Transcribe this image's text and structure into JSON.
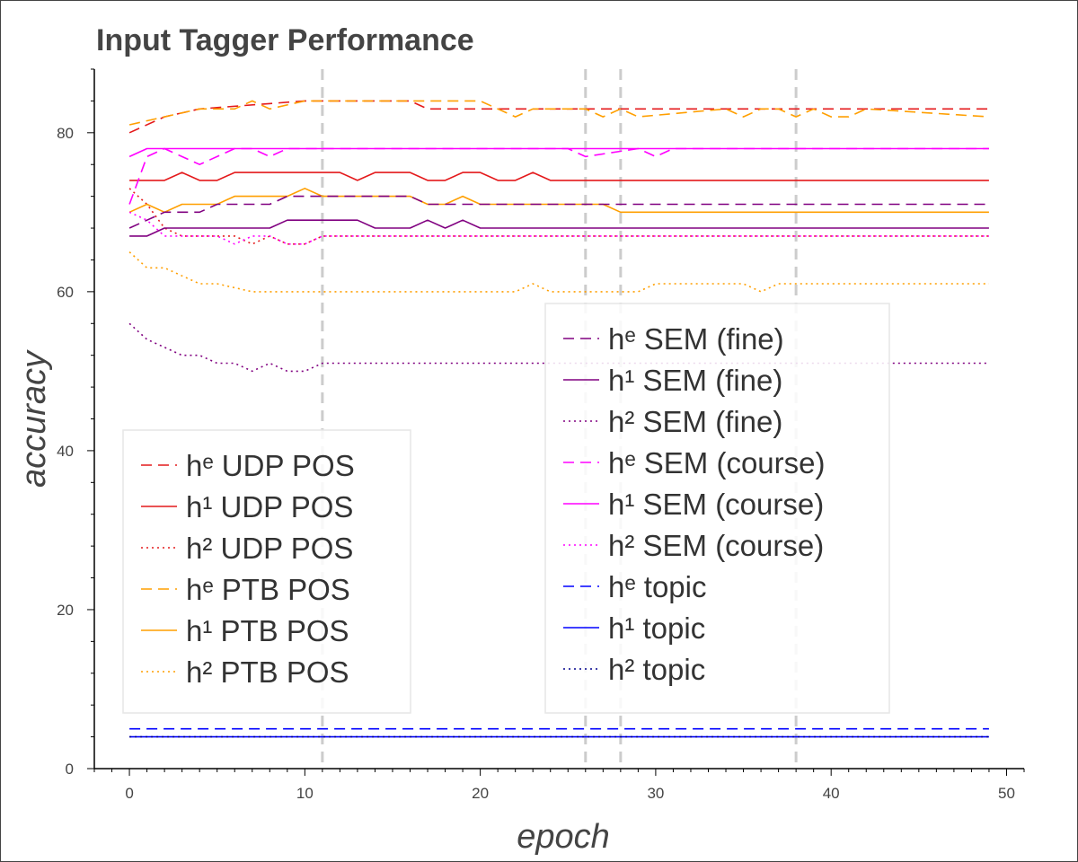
{
  "chart_data": {
    "type": "line",
    "title": "Input Tagger Performance",
    "xlabel": "epoch",
    "ylabel": "accuracy",
    "xlim": [
      -2,
      51
    ],
    "ylim": [
      0,
      88
    ],
    "xticks": [
      0,
      10,
      20,
      30,
      40,
      50
    ],
    "yticks": [
      0,
      20,
      40,
      60,
      80
    ],
    "vlines": [
      11,
      26,
      28,
      38
    ],
    "legends": [
      {
        "position": "lower-left",
        "entries": [
          0,
          1,
          2,
          3,
          4,
          5
        ]
      },
      {
        "position": "center-right",
        "entries": [
          6,
          7,
          8,
          9,
          10,
          11,
          12,
          13,
          14
        ]
      }
    ],
    "series": [
      {
        "name": "hᵉ UDP POS",
        "color": "#e41a1c",
        "dash": "dashed",
        "x": [
          0,
          2,
          4,
          10,
          16,
          17,
          49
        ],
        "y": [
          80,
          82,
          83,
          84,
          84,
          83,
          83
        ]
      },
      {
        "name": "h¹ UDP POS",
        "color": "#e41a1c",
        "dash": "solid",
        "x": [
          0,
          2,
          3,
          4,
          5,
          6,
          12,
          13,
          14,
          16,
          17,
          18,
          19,
          20,
          21,
          22,
          23,
          24,
          49
        ],
        "y": [
          74,
          74,
          75,
          74,
          74,
          75,
          75,
          74,
          75,
          75,
          74,
          74,
          75,
          75,
          74,
          74,
          75,
          74,
          74
        ]
      },
      {
        "name": "h² UDP POS",
        "color": "#e41a1c",
        "dash": "dotted",
        "x": [
          0,
          1,
          2,
          3,
          5,
          6,
          7,
          8,
          9,
          10,
          11,
          49
        ],
        "y": [
          73,
          71,
          68,
          67,
          67,
          67,
          66,
          67,
          66,
          66,
          67,
          67
        ]
      },
      {
        "name": "hᵉ PTB POS",
        "color": "#ff9f00",
        "dash": "dashed",
        "x": [
          0,
          2,
          4,
          6,
          7,
          8,
          10,
          20,
          21,
          22,
          23,
          26,
          27,
          28,
          29,
          34,
          35,
          36,
          37,
          38,
          39,
          40,
          41,
          42,
          49
        ],
        "y": [
          81,
          82,
          83,
          83,
          84,
          83,
          84,
          84,
          83,
          82,
          83,
          83,
          82,
          83,
          82,
          83,
          82,
          83,
          83,
          82,
          83,
          82,
          82,
          83,
          82
        ]
      },
      {
        "name": "h¹ PTB POS",
        "color": "#ff9f00",
        "dash": "solid",
        "x": [
          0,
          1,
          2,
          3,
          5,
          6,
          8,
          9,
          10,
          11,
          12,
          16,
          17,
          18,
          19,
          20,
          27,
          28,
          49
        ],
        "y": [
          70,
          71,
          70,
          71,
          71,
          72,
          72,
          72,
          73,
          72,
          72,
          72,
          71,
          71,
          72,
          71,
          71,
          70,
          70
        ]
      },
      {
        "name": "h² PTB POS",
        "color": "#ff9f00",
        "dash": "dotted",
        "x": [
          0,
          1,
          2,
          3,
          4,
          5,
          7,
          11,
          22,
          23,
          24,
          29,
          30,
          35,
          36,
          37,
          49
        ],
        "y": [
          65,
          63,
          63,
          62,
          61,
          61,
          60,
          60,
          60,
          61,
          60,
          60,
          61,
          61,
          60,
          61,
          61
        ]
      },
      {
        "name": "hᵉ SEM (fine)",
        "color": "#800080",
        "dash": "dashed",
        "x": [
          0,
          1,
          2,
          4,
          5,
          8,
          9,
          12,
          16,
          17,
          49
        ],
        "y": [
          68,
          69,
          70,
          70,
          71,
          71,
          72,
          72,
          72,
          71,
          71
        ]
      },
      {
        "name": "h¹ SEM (fine)",
        "color": "#800080",
        "dash": "solid",
        "x": [
          0,
          1,
          2,
          4,
          8,
          9,
          13,
          14,
          16,
          17,
          18,
          19,
          20,
          49
        ],
        "y": [
          67,
          67,
          68,
          68,
          68,
          69,
          69,
          68,
          68,
          69,
          68,
          69,
          68,
          68
        ]
      },
      {
        "name": "h² SEM (fine)",
        "color": "#800080",
        "dash": "dotted",
        "x": [
          0,
          1,
          2,
          3,
          4,
          5,
          6,
          7,
          8,
          9,
          10,
          11,
          49
        ],
        "y": [
          56,
          54,
          53,
          52,
          52,
          51,
          51,
          50,
          51,
          50,
          50,
          51,
          51
        ]
      },
      {
        "name": "hᵉ SEM (course)",
        "color": "#ff00ff",
        "dash": "dashed",
        "x": [
          0,
          1,
          2,
          3,
          4,
          6,
          7,
          8,
          9,
          10,
          25,
          26,
          29,
          30,
          31,
          49
        ],
        "y": [
          71,
          77,
          78,
          77,
          76,
          78,
          78,
          77,
          78,
          78,
          78,
          77,
          78,
          77,
          78,
          78
        ]
      },
      {
        "name": "h¹ SEM (course)",
        "color": "#ff00ff",
        "dash": "solid",
        "x": [
          0,
          1,
          49
        ],
        "y": [
          77,
          78,
          78
        ]
      },
      {
        "name": "h² SEM (course)",
        "color": "#ff00ff",
        "dash": "dotted",
        "x": [
          0,
          1,
          2,
          3,
          4,
          5,
          6,
          7,
          8,
          9,
          10,
          11,
          49
        ],
        "y": [
          70,
          69,
          67,
          67,
          67,
          67,
          66,
          67,
          67,
          66,
          66,
          67,
          67
        ]
      },
      {
        "name": "hᵉ topic",
        "color": "#0000ff",
        "dash": "dashed",
        "x": [
          0,
          49
        ],
        "y": [
          5,
          5
        ]
      },
      {
        "name": "h¹ topic",
        "color": "#0000ff",
        "dash": "solid",
        "x": [
          0,
          49
        ],
        "y": [
          4,
          4
        ]
      },
      {
        "name": "h² topic",
        "color": "#00008b",
        "dash": "dotted",
        "x": [
          0,
          49
        ],
        "y": [
          4,
          4
        ]
      }
    ]
  }
}
